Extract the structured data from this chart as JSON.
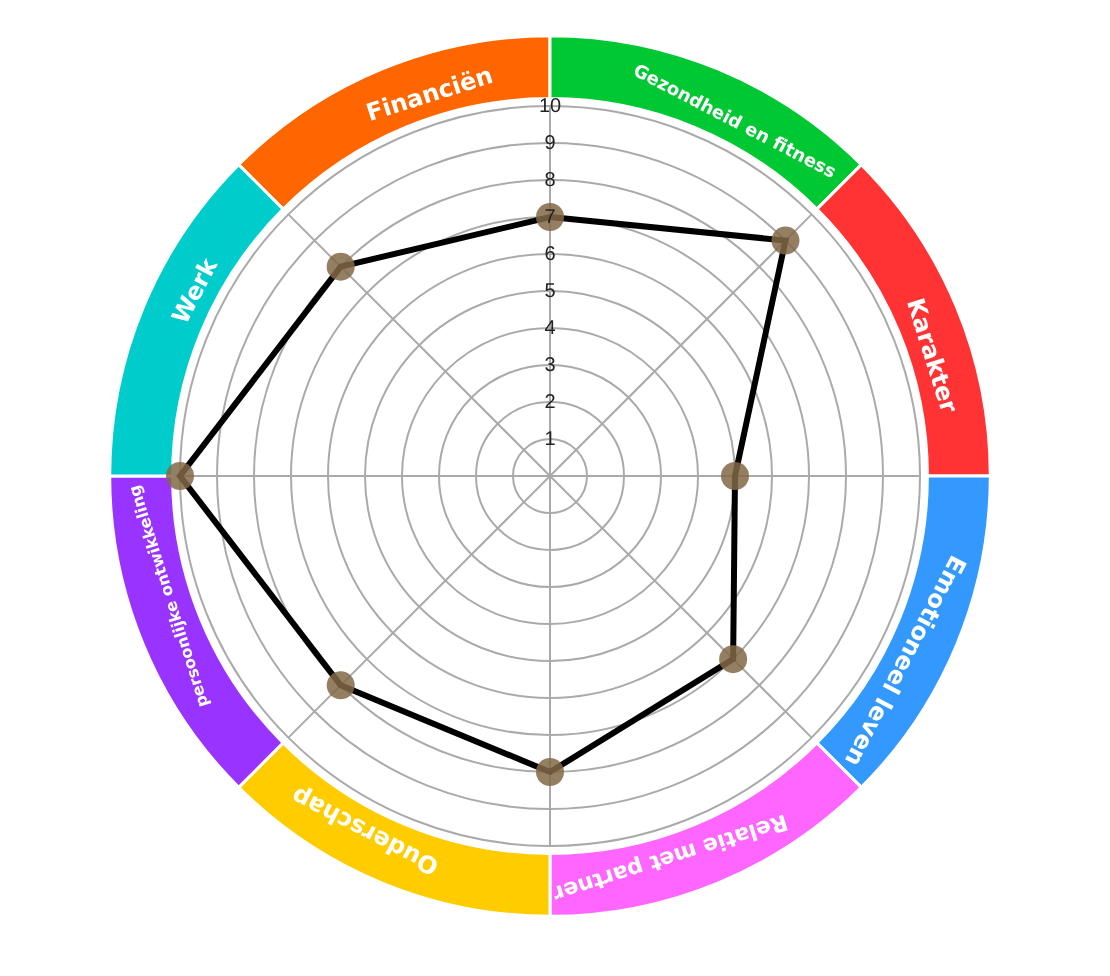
{
  "chart_data": {
    "type": "radar",
    "categories": [
      "Financiën",
      "Gezondheid en fitness",
      "Karakter",
      "Emotioneel leven",
      "Relatie met partner",
      "Ouderschap",
      "persoonlijke ontwikkeling",
      "Werk"
    ],
    "colors": [
      "#ff6600",
      "#00c832",
      "#ff3333",
      "#3399ff",
      "#ff66ff",
      "#ffcc00",
      "#9933ff",
      "#00cccc"
    ],
    "series": [
      {
        "color": "#000000",
        "values": [
          7,
          9,
          5,
          7,
          8,
          8,
          10,
          8
        ]
      }
    ],
    "ylim": [
      0,
      10
    ],
    "yticks": [
      1,
      2,
      3,
      4,
      5,
      6,
      7,
      8,
      9,
      10
    ],
    "grid": true,
    "marker": "circle",
    "legend": false
  }
}
